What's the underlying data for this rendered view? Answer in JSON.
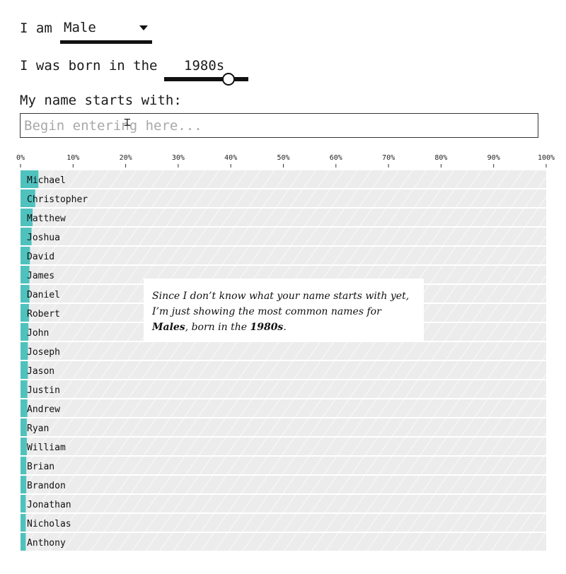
{
  "controls": {
    "gender_prefix": "I am",
    "gender_value": "Male",
    "decade_prefix": "I was born in the",
    "decade_value": "1980s",
    "decade_slider_position": 0.7,
    "name_prompt": "My name starts with:",
    "name_placeholder": "Begin entering here..."
  },
  "note": {
    "line1": "Since I don’t know what your name starts with yet,",
    "line2": "I’m just showing the most common names for",
    "gender": "Males",
    "mid": ", born in the ",
    "decade": "1980s",
    "end": "."
  },
  "colors": {
    "bar": "#4fc2be",
    "row_background": "#ececec"
  },
  "chart_data": {
    "type": "bar",
    "orientation": "horizontal",
    "xlim": [
      0,
      100
    ],
    "x_ticks": [
      "0%",
      "10%",
      "20%",
      "30%",
      "40%",
      "50%",
      "60%",
      "70%",
      "80%",
      "90%",
      "100%"
    ],
    "categories": [
      "Michael",
      "Christopher",
      "Matthew",
      "Joshua",
      "David",
      "James",
      "Daniel",
      "Robert",
      "John",
      "Joseph",
      "Jason",
      "Justin",
      "Andrew",
      "Ryan",
      "William",
      "Brian",
      "Brandon",
      "Jonathan",
      "Nicholas",
      "Anthony"
    ],
    "values": [
      3.4,
      2.8,
      2.3,
      2.1,
      1.8,
      1.7,
      1.7,
      1.6,
      1.5,
      1.4,
      1.4,
      1.3,
      1.3,
      1.2,
      1.2,
      1.1,
      1.1,
      1.0,
      1.0,
      1.0
    ]
  }
}
